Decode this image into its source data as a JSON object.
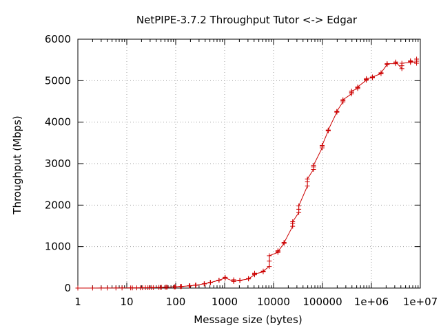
{
  "chart_data": {
    "type": "line",
    "title": "NetPIPE-3.7.2 Throughput Tutor <-> Edgar",
    "xlabel": "Message size (bytes)",
    "ylabel": "Throughput (Mbps)",
    "x_scale": "log",
    "xlim": [
      1,
      10000000
    ],
    "ylim": [
      0,
      6000
    ],
    "x_ticks": [
      1,
      10,
      100,
      1000,
      10000,
      100000,
      1000000,
      10000000
    ],
    "x_tick_labels": [
      "1",
      "10",
      "100",
      "1000",
      "10000",
      "100000",
      "1e+06",
      "1e+07"
    ],
    "y_ticks": [
      0,
      1000,
      2000,
      3000,
      4000,
      5000,
      6000
    ],
    "y_tick_labels": [
      "0",
      "1000",
      "2000",
      "3000",
      "4000",
      "5000",
      "6000"
    ],
    "grid": true,
    "legend": "none",
    "series": [
      {
        "color": "#cc0000",
        "marker": "plus",
        "x": [
          1,
          2,
          3,
          4,
          6,
          8,
          12,
          13,
          16,
          19,
          21,
          24,
          27,
          29,
          32,
          35,
          45,
          48,
          51,
          61,
          64,
          67,
          93,
          96,
          99,
          125,
          128,
          131,
          189,
          192,
          195,
          253,
          256,
          259,
          381,
          384,
          387,
          509,
          512,
          515,
          765,
          768,
          771,
          1021,
          1024,
          1027,
          1533,
          1536,
          1539,
          2045,
          2048,
          2051,
          3069,
          3072,
          3075,
          4093,
          4096,
          4099,
          6141,
          6144,
          6147,
          8189,
          8192,
          8195,
          12285,
          12288,
          12291,
          16381,
          16384,
          16387,
          24573,
          24576,
          24579,
          32765,
          32768,
          32771,
          49149,
          49152,
          49155,
          65533,
          65536,
          65539,
          98301,
          98304,
          98307,
          131069,
          131072,
          131075,
          196605,
          196608,
          196611,
          262141,
          262144,
          262147,
          393213,
          393216,
          393219,
          524285,
          524288,
          524291,
          786429,
          786432,
          786435,
          1048573,
          1048576,
          1048579,
          1572861,
          1572864,
          1572867,
          2097149,
          2097152,
          2097155,
          3145725,
          3145728,
          3145731,
          4194301,
          4194304,
          4194307,
          6291453,
          6291456,
          6291459,
          8388605,
          8388608,
          8388611
        ],
        "y": [
          0,
          0.6,
          1,
          1.2,
          2,
          2.5,
          4,
          4,
          5,
          6,
          7,
          8,
          9,
          10,
          11,
          11,
          15,
          16,
          17,
          20,
          21,
          22,
          28,
          29,
          30,
          36,
          37,
          38,
          53,
          54,
          55,
          69,
          70,
          71,
          101,
          102,
          103,
          133,
          134,
          135,
          189,
          190,
          191,
          240,
          260,
          245,
          160,
          200,
          170,
          180,
          190,
          185,
          220,
          230,
          225,
          320,
          360,
          340,
          390,
          400,
          410,
          520,
          650,
          780,
          860,
          900,
          880,
          1080,
          1100,
          1090,
          1490,
          1560,
          1600,
          1820,
          1900,
          1980,
          2460,
          2560,
          2630,
          2860,
          2920,
          2960,
          3380,
          3420,
          3440,
          3790,
          3800,
          3810,
          4240,
          4250,
          4260,
          4490,
          4520,
          4540,
          4680,
          4720,
          4750,
          4810,
          4830,
          4850,
          5010,
          5030,
          5050,
          5070,
          5080,
          5090,
          5170,
          5180,
          5190,
          5390,
          5400,
          5410,
          5410,
          5440,
          5450,
          5290,
          5360,
          5420,
          5440,
          5460,
          5480,
          5420,
          5470,
          5520
        ]
      }
    ]
  }
}
